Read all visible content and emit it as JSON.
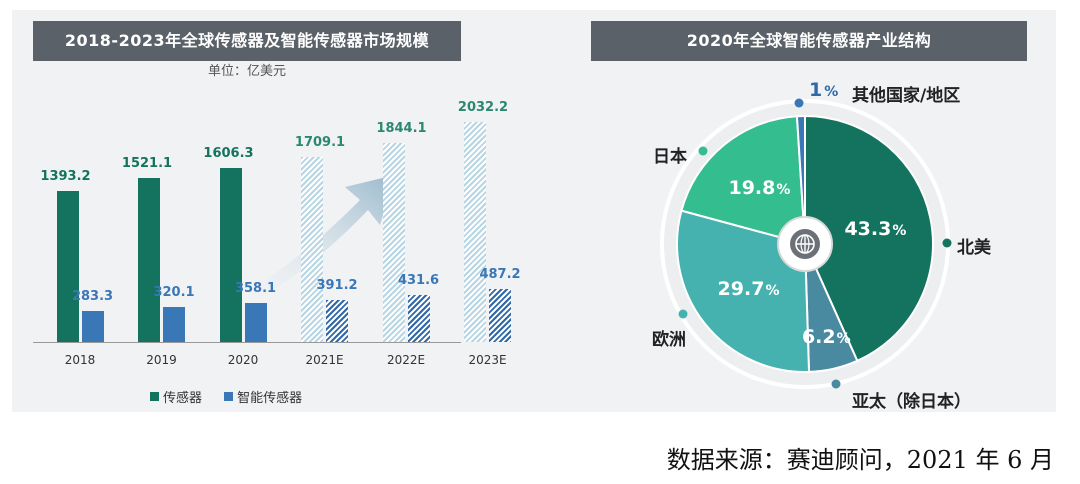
{
  "chart_data": [
    {
      "type": "bar",
      "title": "2018-2023年全球传感器及智能传感器市场规模",
      "subtitle": "单位：亿美元",
      "categories": [
        "2018",
        "2019",
        "2020",
        "2021E",
        "2022E",
        "2023E"
      ],
      "forecast_categories": [
        "2021E",
        "2022E",
        "2023E"
      ],
      "ylim": [
        0,
        2100
      ],
      "grid": false,
      "legend_position": "bottom",
      "series": [
        {
          "name": "传感器",
          "values": [
            1393.2,
            1521.1,
            1606.3,
            1709.1,
            1844.1,
            2032.2
          ],
          "labels": [
            "1393.2",
            "1521.1",
            "1606.3",
            "1709.1",
            "1844.1",
            "2032.2"
          ]
        },
        {
          "name": "智能传感器",
          "values": [
            283.3,
            320.1,
            358.1,
            391.2,
            431.6,
            487.2
          ],
          "labels": [
            "283.3",
            "320.1",
            "358.1",
            "391.2",
            "431.6",
            "487.2"
          ]
        }
      ],
      "colors": {
        "sensor": "#13735f",
        "smart": "#3a77b7",
        "sensor_forecast": "#b7d5e2",
        "smart_forecast": "#2f69a9"
      }
    },
    {
      "type": "pie",
      "title": "2020年全球智能传感器产业结构",
      "slices": [
        {
          "name": "北美",
          "value": 43.3,
          "label": "43.3",
          "color": "#13735f"
        },
        {
          "name": "亚太（除日本）",
          "value": 6.2,
          "label": "6.2",
          "color": "#4a8aa1"
        },
        {
          "name": "欧洲",
          "value": 29.7,
          "label": "29.7",
          "color": "#46b2b0"
        },
        {
          "name": "日本",
          "value": 19.8,
          "label": "19.8",
          "color": "#34bd8f"
        },
        {
          "name": "其他国家/地区",
          "value": 1,
          "label": "1",
          "color": "#3a77b7"
        }
      ],
      "percent_sign": "%"
    }
  ],
  "source": "数据来源：赛迪顾问，2021 年 6 月"
}
